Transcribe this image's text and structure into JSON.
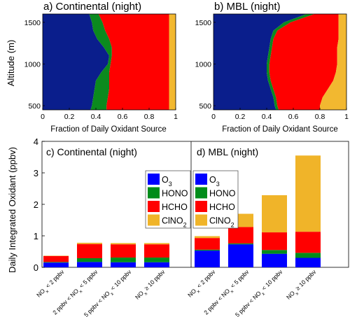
{
  "colors": {
    "O3": "#0a1e8c",
    "HONO": "#0b8a1e",
    "HCHO": "#ff0000",
    "ClNO2": "#f2b830",
    "O3_bar": "#0000ff",
    "HONO_bar": "#008c1a",
    "HCHO_bar": "#ff0000",
    "ClNO2_bar": "#f0b429"
  },
  "top_panels": {
    "ylabel": "Altitude (m)",
    "xlabel": "Fraction of Daily Oxidant Source",
    "x_ticks": [
      "0",
      "0.2",
      "0.4",
      "0.6",
      "0.8",
      "1"
    ],
    "y_ticks": [
      "500",
      "1000",
      "1500"
    ]
  },
  "bottom": {
    "ylabel": "Daily Integrated Oxidant (ppbv)",
    "y_ticks": [
      "0",
      "1",
      "2",
      "3",
      "4"
    ],
    "categories": [
      {
        "base": "NO",
        "sub": "x",
        "rest": " < 2 ppbv",
        "pre": ""
      },
      {
        "pre": "2 ppbv < NO",
        "sub": "x",
        "rest": " < 5 ppbv"
      },
      {
        "pre": "5 ppbv < NO",
        "sub": "x",
        "rest": " < 10 ppbv"
      },
      {
        "pre": "NO",
        "sub": "x",
        "rest": " ≥ 10 ppbv"
      }
    ],
    "legend": [
      {
        "key": "O3_bar",
        "label": "O",
        "sub": "3"
      },
      {
        "key": "HONO_bar",
        "label": "HONO",
        "sub": ""
      },
      {
        "key": "HCHO_bar",
        "label": "HCHO",
        "sub": ""
      },
      {
        "key": "ClNO2_bar",
        "label": "ClNO",
        "sub": "2"
      }
    ]
  },
  "chart_data": [
    {
      "type": "area",
      "title": "a) Continental (night)",
      "xlabel": "Fraction of Daily Oxidant Source",
      "ylabel": "Altitude (m)",
      "xlim": [
        0,
        1
      ],
      "ylim": [
        450,
        1600
      ],
      "altitude": [
        450,
        500,
        600,
        700,
        800,
        900,
        1000,
        1100,
        1200,
        1300,
        1400,
        1500,
        1600
      ],
      "series": [
        {
          "name": "O3",
          "cumulative": [
            0.36,
            0.37,
            0.38,
            0.39,
            0.4,
            0.44,
            0.49,
            0.5,
            0.46,
            0.41,
            0.38,
            0.37,
            0.35
          ]
        },
        {
          "name": "HONO",
          "cumulative": [
            0.48,
            0.48,
            0.49,
            0.5,
            0.5,
            0.5,
            0.51,
            0.52,
            0.52,
            0.5,
            0.47,
            0.45,
            0.42
          ]
        },
        {
          "name": "HCHO",
          "cumulative": [
            0.95,
            0.95,
            0.95,
            0.95,
            0.95,
            0.95,
            0.95,
            0.95,
            0.95,
            0.95,
            0.95,
            0.95,
            0.95
          ]
        },
        {
          "name": "ClNO2",
          "cumulative": [
            1,
            1,
            1,
            1,
            1,
            1,
            1,
            1,
            1,
            1,
            1,
            1,
            1
          ]
        }
      ]
    },
    {
      "type": "area",
      "title": "b) MBL (night)",
      "xlabel": "Fraction of Daily Oxidant Source",
      "xlim": [
        0,
        1
      ],
      "ylim": [
        450,
        1600
      ],
      "altitude": [
        450,
        500,
        600,
        700,
        800,
        900,
        1000,
        1100,
        1200,
        1300,
        1400,
        1500,
        1600
      ],
      "series": [
        {
          "name": "O3",
          "cumulative": [
            0.47,
            0.46,
            0.45,
            0.43,
            0.41,
            0.4,
            0.4,
            0.41,
            0.42,
            0.43,
            0.45,
            0.53,
            0.7
          ]
        },
        {
          "name": "HONO",
          "cumulative": [
            0.49,
            0.48,
            0.47,
            0.45,
            0.43,
            0.42,
            0.42,
            0.43,
            0.44,
            0.45,
            0.48,
            0.58,
            0.76
          ]
        },
        {
          "name": "HCHO",
          "cumulative": [
            0.8,
            0.8,
            0.82,
            0.86,
            0.9,
            0.92,
            0.93,
            0.93,
            0.93,
            0.94,
            0.94,
            0.94,
            0.94
          ]
        },
        {
          "name": "ClNO2",
          "cumulative": [
            1,
            1,
            1,
            1,
            1,
            1,
            1,
            1,
            1,
            1,
            1,
            1,
            1
          ]
        }
      ]
    },
    {
      "type": "bar",
      "stacked": true,
      "title": "c) Continental (night)",
      "ylabel": "Daily Integrated Oxidant (ppbv)",
      "ylim": [
        0,
        4
      ],
      "categories": [
        "NOx < 2 ppbv",
        "2 ppbv < NOx < 5 ppbv",
        "5 ppbv < NOx < 10 ppbv",
        "NOx ≥ 10 ppbv"
      ],
      "series": [
        {
          "name": "O3",
          "values": [
            0.15,
            0.17,
            0.16,
            0.16
          ]
        },
        {
          "name": "HONO",
          "values": [
            0.02,
            0.12,
            0.15,
            0.15
          ]
        },
        {
          "name": "HCHO",
          "values": [
            0.19,
            0.45,
            0.42,
            0.42
          ]
        },
        {
          "name": "ClNO2",
          "values": [
            0.01,
            0.04,
            0.04,
            0.04
          ]
        }
      ]
    },
    {
      "type": "bar",
      "stacked": true,
      "title": "d) MBL (night)",
      "ylim": [
        0,
        4
      ],
      "categories": [
        "NOx < 2 ppbv",
        "2 ppbv < NOx < 5 ppbv",
        "5 ppbv < NOx < 10 ppbv",
        "NOx ≥ 10 ppbv"
      ],
      "series": [
        {
          "name": "O3",
          "values": [
            0.53,
            0.73,
            0.43,
            0.3
          ]
        },
        {
          "name": "HONO",
          "values": [
            0.03,
            0.03,
            0.12,
            0.16
          ]
        },
        {
          "name": "HCHO",
          "values": [
            0.37,
            0.52,
            0.56,
            0.67
          ]
        },
        {
          "name": "ClNO2",
          "values": [
            0.06,
            0.42,
            1.18,
            2.42
          ]
        }
      ]
    }
  ]
}
